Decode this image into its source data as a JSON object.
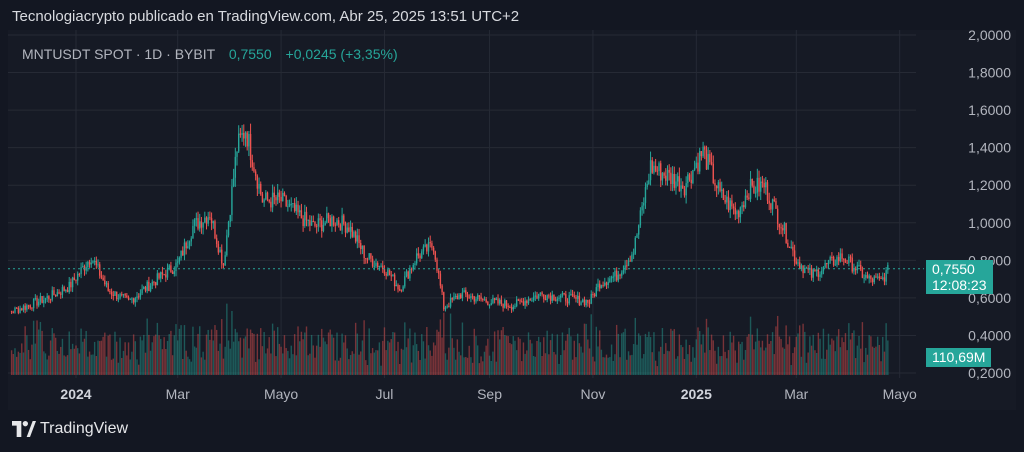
{
  "attribution": "Tecnologiacrypto publicado en TradingView.com, Abr 25, 2025 13:51 UTC+2",
  "legend": {
    "symbol": "MNTUSDT SPOT · 1D · BYBIT",
    "last": "0,7550",
    "change": "+0,0245 (+3,35%)"
  },
  "price_tag": {
    "price": "0,7550",
    "countdown": "12:08:23"
  },
  "volume_tag": "110,69M",
  "brand": "TradingView",
  "colors": {
    "up": "#26a69a",
    "down": "#ef5350",
    "background": "#161a25",
    "grid": "#262a35",
    "axis_text": "#b2b5be"
  },
  "chart_data": {
    "type": "candlestick",
    "title": "",
    "xlabel": "",
    "ylabel": "",
    "ylim": [
      0.2,
      2.0
    ],
    "y_ticks": [
      "0,2000",
      "0,4000",
      "0,6000",
      "0,8000",
      "1,0000",
      "1,2000",
      "1,4000",
      "1,6000",
      "1,8000",
      "2,0000"
    ],
    "x_ticks": [
      {
        "label": "2024",
        "bold": true,
        "date": "2024-01-01"
      },
      {
        "label": "Mar",
        "bold": false,
        "date": "2024-03-01"
      },
      {
        "label": "Mayo",
        "bold": false,
        "date": "2024-05-01"
      },
      {
        "label": "Jul",
        "bold": false,
        "date": "2024-07-01"
      },
      {
        "label": "Sep",
        "bold": false,
        "date": "2024-09-01"
      },
      {
        "label": "Nov",
        "bold": false,
        "date": "2024-11-01"
      },
      {
        "label": "2025",
        "bold": true,
        "date": "2025-01-01"
      },
      {
        "label": "Mar",
        "bold": false,
        "date": "2025-03-01"
      },
      {
        "label": "Mayo",
        "bold": false,
        "date": "2025-05-01"
      }
    ],
    "last_price": 0.755,
    "price_path": [
      [
        "2023-11-15",
        0.5
      ],
      [
        "2023-12-01",
        0.55
      ],
      [
        "2023-12-15",
        0.6
      ],
      [
        "2023-12-28",
        0.66
      ],
      [
        "2024-01-10",
        0.82
      ],
      [
        "2024-01-20",
        0.64
      ],
      [
        "2024-02-01",
        0.58
      ],
      [
        "2024-02-15",
        0.68
      ],
      [
        "2024-03-01",
        0.78
      ],
      [
        "2024-03-10",
        0.98
      ],
      [
        "2024-03-20",
        1.05
      ],
      [
        "2024-03-28",
        0.78
      ],
      [
        "2024-04-05",
        1.4
      ],
      [
        "2024-04-10",
        1.5
      ],
      [
        "2024-04-20",
        1.12
      ],
      [
        "2024-05-01",
        1.12
      ],
      [
        "2024-05-10",
        1.05
      ],
      [
        "2024-05-20",
        0.98
      ],
      [
        "2024-06-01",
        1.02
      ],
      [
        "2024-06-10",
        0.98
      ],
      [
        "2024-06-20",
        0.82
      ],
      [
        "2024-07-01",
        0.76
      ],
      [
        "2024-07-10",
        0.65
      ],
      [
        "2024-07-20",
        0.82
      ],
      [
        "2024-07-30",
        0.88
      ],
      [
        "2024-08-05",
        0.55
      ],
      [
        "2024-08-15",
        0.62
      ],
      [
        "2024-09-01",
        0.58
      ],
      [
        "2024-09-15",
        0.56
      ],
      [
        "2024-10-01",
        0.62
      ],
      [
        "2024-10-15",
        0.6
      ],
      [
        "2024-10-30",
        0.58
      ],
      [
        "2024-11-05",
        0.68
      ],
      [
        "2024-11-15",
        0.72
      ],
      [
        "2024-11-25",
        0.85
      ],
      [
        "2024-12-05",
        1.3
      ],
      [
        "2024-12-15",
        1.25
      ],
      [
        "2024-12-25",
        1.2
      ],
      [
        "2025-01-05",
        1.38
      ],
      [
        "2025-01-15",
        1.15
      ],
      [
        "2025-01-25",
        1.05
      ],
      [
        "2025-02-01",
        1.18
      ],
      [
        "2025-02-10",
        1.2
      ],
      [
        "2025-02-20",
        1.0
      ],
      [
        "2025-03-01",
        0.8
      ],
      [
        "2025-03-10",
        0.72
      ],
      [
        "2025-03-20",
        0.78
      ],
      [
        "2025-03-28",
        0.82
      ],
      [
        "2025-04-05",
        0.76
      ],
      [
        "2025-04-12",
        0.7
      ],
      [
        "2025-04-20",
        0.69
      ],
      [
        "2025-04-25",
        0.755
      ]
    ]
  }
}
